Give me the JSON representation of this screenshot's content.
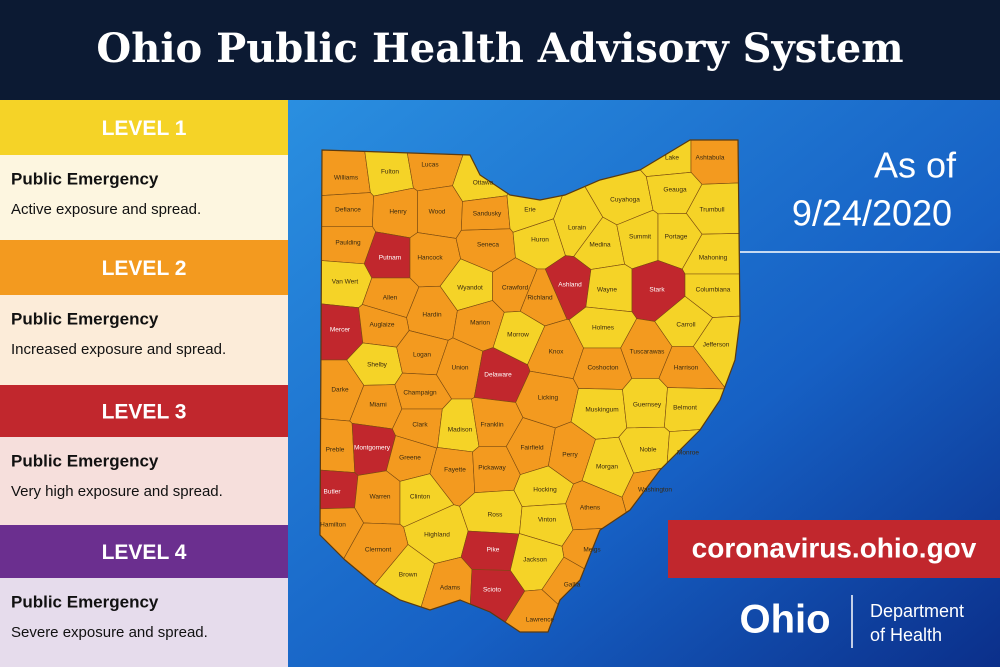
{
  "header": {
    "title": "Ohio Public Health Advisory System"
  },
  "levels": [
    {
      "label": "LEVEL 1",
      "heading": "Public Emergency",
      "description": "Active exposure and spread.",
      "color": "#f5d327",
      "panel": "#fdf6e0"
    },
    {
      "label": "LEVEL 2",
      "heading": "Public Emergency",
      "description": "Increased exposure and spread.",
      "color": "#f39a1f",
      "panel": "#fcecd9"
    },
    {
      "label": "LEVEL 3",
      "heading": "Public Emergency",
      "description": "Very high exposure and spread.",
      "color": "#c1272d",
      "panel": "#f6dfdc"
    },
    {
      "label": "LEVEL 4",
      "heading": "Public Emergency",
      "description": "Severe exposure and spread.",
      "color": "#6b2f8f",
      "panel": "#e6dcec"
    }
  ],
  "map": {
    "counties": [
      {
        "name": "Williams",
        "level": 2
      },
      {
        "name": "Fulton",
        "level": 1
      },
      {
        "name": "Lucas",
        "level": 2
      },
      {
        "name": "Ottawa",
        "level": 1
      },
      {
        "name": "Defiance",
        "level": 2
      },
      {
        "name": "Henry",
        "level": 2
      },
      {
        "name": "Wood",
        "level": 2
      },
      {
        "name": "Sandusky",
        "level": 2
      },
      {
        "name": "Erie",
        "level": 1
      },
      {
        "name": "Paulding",
        "level": 2
      },
      {
        "name": "Putnam",
        "level": 3
      },
      {
        "name": "Hancock",
        "level": 2
      },
      {
        "name": "Seneca",
        "level": 2
      },
      {
        "name": "Huron",
        "level": 1
      },
      {
        "name": "Lorain",
        "level": 1
      },
      {
        "name": "Cuyahoga",
        "level": 1
      },
      {
        "name": "Lake",
        "level": 1
      },
      {
        "name": "Ashtabula",
        "level": 2
      },
      {
        "name": "Geauga",
        "level": 1
      },
      {
        "name": "Trumbull",
        "level": 1
      },
      {
        "name": "Medina",
        "level": 1
      },
      {
        "name": "Summit",
        "level": 1
      },
      {
        "name": "Portage",
        "level": 1
      },
      {
        "name": "Mahoning",
        "level": 1
      },
      {
        "name": "Van Wert",
        "level": 1
      },
      {
        "name": "Allen",
        "level": 2
      },
      {
        "name": "Hardin",
        "level": 2
      },
      {
        "name": "Wyandot",
        "level": 1
      },
      {
        "name": "Crawford",
        "level": 2
      },
      {
        "name": "Richland",
        "level": 2
      },
      {
        "name": "Ashland",
        "level": 3
      },
      {
        "name": "Wayne",
        "level": 1
      },
      {
        "name": "Stark",
        "level": 3
      },
      {
        "name": "Columbiana",
        "level": 1
      },
      {
        "name": "Mercer",
        "level": 3
      },
      {
        "name": "Auglaize",
        "level": 2
      },
      {
        "name": "Marion",
        "level": 2
      },
      {
        "name": "Morrow",
        "level": 1
      },
      {
        "name": "Knox",
        "level": 2
      },
      {
        "name": "Holmes",
        "level": 1
      },
      {
        "name": "Carroll",
        "level": 1
      },
      {
        "name": "Tuscarawas",
        "level": 2
      },
      {
        "name": "Jefferson",
        "level": 1
      },
      {
        "name": "Shelby",
        "level": 1
      },
      {
        "name": "Logan",
        "level": 2
      },
      {
        "name": "Union",
        "level": 2
      },
      {
        "name": "Delaware",
        "level": 3
      },
      {
        "name": "Harrison",
        "level": 2
      },
      {
        "name": "Coshocton",
        "level": 2
      },
      {
        "name": "Darke",
        "level": 2
      },
      {
        "name": "Miami",
        "level": 2
      },
      {
        "name": "Champaign",
        "level": 2
      },
      {
        "name": "Licking",
        "level": 2
      },
      {
        "name": "Muskingum",
        "level": 1
      },
      {
        "name": "Guernsey",
        "level": 1
      },
      {
        "name": "Belmont",
        "level": 1
      },
      {
        "name": "Preble",
        "level": 2
      },
      {
        "name": "Montgomery",
        "level": 3
      },
      {
        "name": "Clark",
        "level": 2
      },
      {
        "name": "Madison",
        "level": 1
      },
      {
        "name": "Franklin",
        "level": 2
      },
      {
        "name": "Fairfield",
        "level": 2
      },
      {
        "name": "Perry",
        "level": 2
      },
      {
        "name": "Noble",
        "level": 1
      },
      {
        "name": "Monroe",
        "level": 1
      },
      {
        "name": "Morgan",
        "level": 1
      },
      {
        "name": "Greene",
        "level": 2
      },
      {
        "name": "Fayette",
        "level": 2
      },
      {
        "name": "Pickaway",
        "level": 2
      },
      {
        "name": "Washington",
        "level": 2
      },
      {
        "name": "Butler",
        "level": 3
      },
      {
        "name": "Warren",
        "level": 2
      },
      {
        "name": "Clinton",
        "level": 1
      },
      {
        "name": "Hocking",
        "level": 1
      },
      {
        "name": "Athens",
        "level": 2
      },
      {
        "name": "Hamilton",
        "level": 2
      },
      {
        "name": "Ross",
        "level": 1
      },
      {
        "name": "Vinton",
        "level": 1
      },
      {
        "name": "Highland",
        "level": 1
      },
      {
        "name": "Clermont",
        "level": 2
      },
      {
        "name": "Meigs",
        "level": 2
      },
      {
        "name": "Brown",
        "level": 1
      },
      {
        "name": "Pike",
        "level": 3
      },
      {
        "name": "Jackson",
        "level": 1
      },
      {
        "name": "Adams",
        "level": 2
      },
      {
        "name": "Scioto",
        "level": 3
      },
      {
        "name": "Gallia",
        "level": 2
      },
      {
        "name": "Lawrence",
        "level": 2
      }
    ]
  },
  "date": {
    "prefix": "As of",
    "value": "9/24/2020"
  },
  "website": "coronavirus.ohio.gov",
  "logo": {
    "wordmark": "Ohio",
    "department": "Department",
    "subline": "of Health"
  }
}
